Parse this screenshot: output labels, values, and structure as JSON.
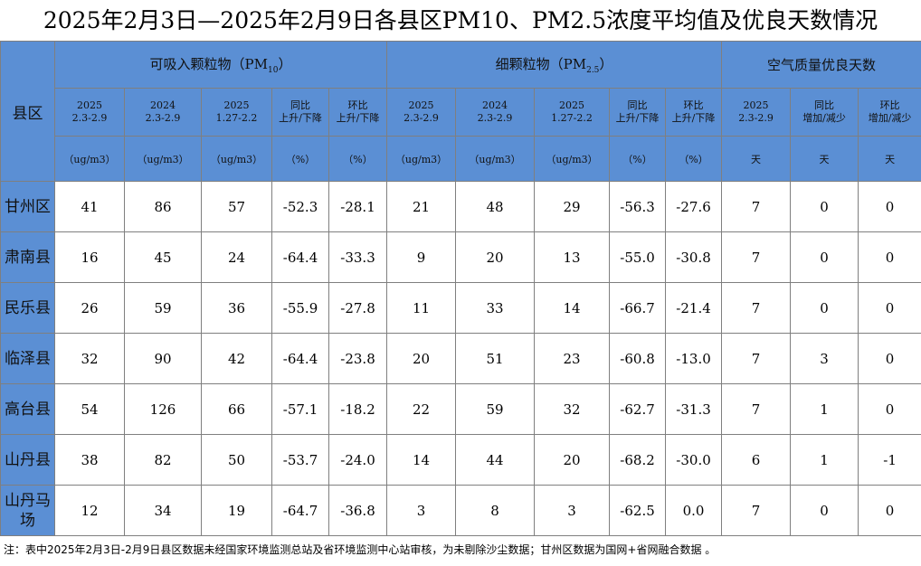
{
  "title": "2025年2月3日—2025年2月9日各县区PM10、PM2.5浓度平均值及优良天数情况",
  "header": {
    "county": "县区",
    "groups": [
      {
        "text": "可吸入颗粒物（PM",
        "sub": "10",
        "tail": "）"
      },
      {
        "text": "细颗粒物（PM",
        "sub": "2.5",
        "tail": "）"
      },
      {
        "text": "空气质量优良天数"
      }
    ],
    "periods": [
      [
        "2025",
        "2.3-2.9"
      ],
      [
        "2024",
        "2.3-2.9"
      ],
      [
        "2025",
        "1.27-2.2"
      ],
      [
        "同比",
        "上升/下降"
      ],
      [
        "环比",
        "上升/下降"
      ],
      [
        "2025",
        "2.3-2.9"
      ],
      [
        "2024",
        "2.3-2.9"
      ],
      [
        "2025",
        "1.27-2.2"
      ],
      [
        "同比",
        "上升/下降"
      ],
      [
        "环比",
        "上升/下降"
      ],
      [
        "2025",
        "2.3-2.9"
      ],
      [
        "同比",
        "增加/减少"
      ],
      [
        "环比",
        "增加/减少"
      ]
    ],
    "units": [
      "（ug/m3）",
      "（ug/m3）",
      "（ug/m3）",
      "（%）",
      "（%）",
      "（ug/m3）",
      "（ug/m3）",
      "（ug/m3）",
      "（%）",
      "（%）",
      "天",
      "天",
      "天"
    ]
  },
  "table": {
    "rows": [
      [
        "甘州区",
        "41",
        "86",
        "57",
        "-52.3",
        "-28.1",
        "21",
        "48",
        "29",
        "-56.3",
        "-27.6",
        "7",
        "0",
        "0"
      ],
      [
        "肃南县",
        "16",
        "45",
        "24",
        "-64.4",
        "-33.3",
        "9",
        "20",
        "13",
        "-55.0",
        "-30.8",
        "7",
        "0",
        "0"
      ],
      [
        "民乐县",
        "26",
        "59",
        "36",
        "-55.9",
        "-27.8",
        "11",
        "33",
        "14",
        "-66.7",
        "-21.4",
        "7",
        "0",
        "0"
      ],
      [
        "临泽县",
        "32",
        "90",
        "42",
        "-64.4",
        "-23.8",
        "20",
        "51",
        "23",
        "-60.8",
        "-13.0",
        "7",
        "3",
        "0"
      ],
      [
        "高台县",
        "54",
        "126",
        "66",
        "-57.1",
        "-18.2",
        "22",
        "59",
        "32",
        "-62.7",
        "-31.3",
        "7",
        "1",
        "0"
      ],
      [
        "山丹县",
        "38",
        "82",
        "50",
        "-53.7",
        "-24.0",
        "14",
        "44",
        "20",
        "-68.2",
        "-30.0",
        "6",
        "1",
        "-1"
      ],
      [
        "山丹马场",
        "12",
        "34",
        "19",
        "-64.7",
        "-36.8",
        "3",
        "8",
        "3",
        "-62.5",
        "0.0",
        "7",
        "0",
        "0"
      ]
    ]
  },
  "note": "注：表中2025年2月3日-2月9日县区数据未经国家环境监测总站及省环境监测中心站审核，为未剔除沙尘数据；甘州区数据为国网+省网融合数据 。"
}
